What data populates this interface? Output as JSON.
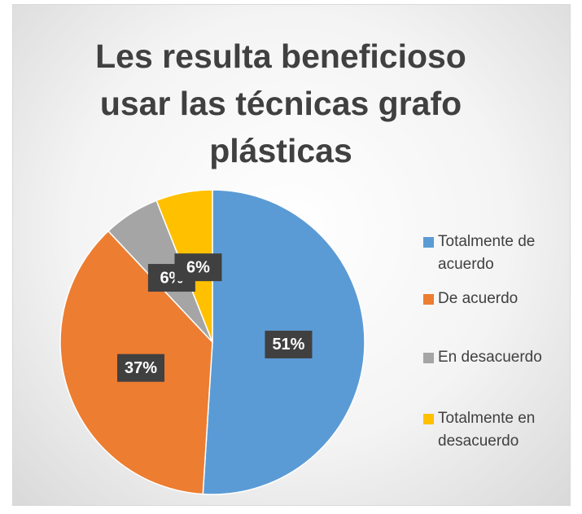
{
  "chart_data": {
    "type": "pie",
    "title": "Les resulta beneficioso usar las técnicas grafo plásticas",
    "categories": [
      "Totalmente de acuerdo",
      "De acuerdo",
      "En desacuerdo",
      "Totalmente en desacuerdo"
    ],
    "values": [
      51,
      37,
      6,
      6
    ],
    "value_labels": [
      "51%",
      "37%",
      "6%",
      "6%"
    ],
    "colors": [
      "#5b9bd5",
      "#ed7d31",
      "#a5a5a5",
      "#ffc000"
    ],
    "legend": "right"
  }
}
